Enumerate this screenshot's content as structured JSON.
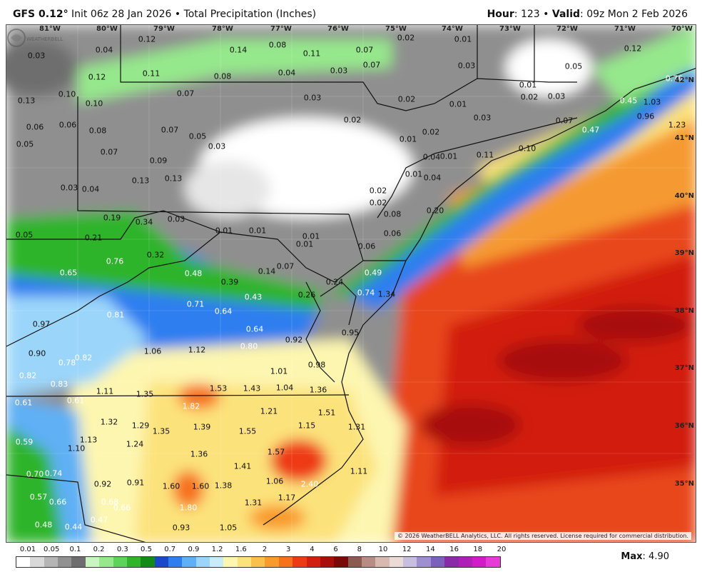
{
  "header": {
    "model": "GFS 0.12",
    "degree": "°",
    "init": "Init 06z 28 Jan 2026",
    "bullet": "•",
    "product": "Total Precipitation (Inches)",
    "hour_label": "Hour",
    "hour_value": "123",
    "valid_label": "Valid",
    "valid_value": "09z Mon 2 Feb 2026"
  },
  "copyright": "© 2026 WeatherBELL Analytics, LLC. All rights reserved. License required for commercial distribution.",
  "logo_text": "WEATHERBELL",
  "max": {
    "label": "Max",
    "value": "4.90"
  },
  "longitude_ticks": [
    "81°W",
    "80°W",
    "79°W",
    "78°W",
    "77°W",
    "76°W",
    "75°W",
    "74°W",
    "73°W",
    "72°W",
    "71°W",
    "70°W"
  ],
  "latitude_ticks": [
    "42°N",
    "41°N",
    "40°N",
    "39°N",
    "38°N",
    "37°N",
    "36°N",
    "35°N"
  ],
  "scale": {
    "labels": [
      "0.01",
      "0.05",
      "0.1",
      "0.2",
      "0.3",
      "0.5",
      "0.7",
      "0.9",
      "1.2",
      "1.6",
      "2",
      "3",
      "4",
      "6",
      "8",
      "10",
      "12",
      "14",
      "16",
      "18",
      "20"
    ],
    "colors": [
      "#ffffff",
      "#d9d9d9",
      "#b5b5b5",
      "#919191",
      "#6e6e6e",
      "#c8f5c0",
      "#96e88c",
      "#5cd45a",
      "#2fb42a",
      "#128a17",
      "#1b48c9",
      "#2f7ef0",
      "#5fb0f5",
      "#9bd6fa",
      "#c9ecfb",
      "#fdf6b0",
      "#fce27a",
      "#fbc04c",
      "#f99a2c",
      "#f6711c",
      "#ee3a14",
      "#d21e10",
      "#a80f0a",
      "#7a0a08",
      "#8c5a4e",
      "#b78c82",
      "#d8b9b0",
      "#eadbd6",
      "#c8bfe0",
      "#9d8fd0",
      "#7a62bc",
      "#8a2aa6",
      "#b01eb8",
      "#d11ac8",
      "#e63ad6"
    ]
  },
  "precip_labels": [
    {
      "v": "0.03"
    },
    {
      "v": "0.04"
    },
    {
      "v": "0.12"
    },
    {
      "v": "0.14"
    },
    {
      "v": "0.08"
    },
    {
      "v": "0.11"
    },
    {
      "v": "0.07"
    },
    {
      "v": "0.02"
    },
    {
      "v": "0.01"
    },
    {
      "v": "0.05"
    },
    {
      "v": "0.12"
    },
    {
      "v": "0.12"
    },
    {
      "v": "0.11"
    },
    {
      "v": "0.08"
    },
    {
      "v": "0.04"
    },
    {
      "v": "0.03"
    },
    {
      "v": "0.07"
    },
    {
      "v": "0.03"
    },
    {
      "v": "0.01"
    },
    {
      "v": "0.76"
    },
    {
      "v": "0.13"
    },
    {
      "v": "0.10"
    },
    {
      "v": "0.10"
    },
    {
      "v": "0.07"
    },
    {
      "v": "0.03"
    },
    {
      "v": "0.02"
    },
    {
      "v": "0.01"
    },
    {
      "v": "0.02"
    },
    {
      "v": "0.03"
    },
    {
      "v": "0.45"
    },
    {
      "v": "1.03"
    },
    {
      "v": "0.06"
    },
    {
      "v": "0.06"
    },
    {
      "v": "0.08"
    },
    {
      "v": "0.07"
    },
    {
      "v": "0.05"
    },
    {
      "v": "0.02"
    },
    {
      "v": "0.03"
    },
    {
      "v": "0.07"
    },
    {
      "v": "0.96"
    },
    {
      "v": "1.23"
    },
    {
      "v": "0.05"
    },
    {
      "v": "0.07"
    },
    {
      "v": "0.03"
    },
    {
      "v": "0.01"
    },
    {
      "v": "0.02"
    },
    {
      "v": "0.04"
    },
    {
      "v": "0.47"
    },
    {
      "v": "0.09"
    },
    {
      "v": "0.01"
    },
    {
      "v": "0.11"
    },
    {
      "v": "0.10"
    },
    {
      "v": "0.03"
    },
    {
      "v": "0.04"
    },
    {
      "v": "0.13"
    },
    {
      "v": "0.13"
    },
    {
      "v": "0.01"
    },
    {
      "v": "0.04"
    },
    {
      "v": "0.02"
    },
    {
      "v": "0.02"
    },
    {
      "v": "0.20"
    },
    {
      "v": "0.19"
    },
    {
      "v": "0.34"
    },
    {
      "v": "0.03"
    },
    {
      "v": "0.08"
    },
    {
      "v": "0.05"
    },
    {
      "v": "0.21"
    },
    {
      "v": "0.01"
    },
    {
      "v": "0.01"
    },
    {
      "v": "0.01"
    },
    {
      "v": "0.06"
    },
    {
      "v": "0.32"
    },
    {
      "v": "0.76"
    },
    {
      "v": "0.01"
    },
    {
      "v": "0.06"
    },
    {
      "v": "0.65"
    },
    {
      "v": "0.48"
    },
    {
      "v": "0.07"
    },
    {
      "v": "0.14"
    },
    {
      "v": "0.49"
    },
    {
      "v": "0.39"
    },
    {
      "v": "0.24"
    },
    {
      "v": "0.74"
    },
    {
      "v": "1.34"
    },
    {
      "v": "0.71"
    },
    {
      "v": "0.43"
    },
    {
      "v": "0.26"
    },
    {
      "v": "0.64"
    },
    {
      "v": "0.81"
    },
    {
      "v": "0.97"
    },
    {
      "v": "0.64"
    },
    {
      "v": "0.95"
    },
    {
      "v": "0.92"
    },
    {
      "v": "0.80"
    },
    {
      "v": "0.90"
    },
    {
      "v": "1.06"
    },
    {
      "v": "1.12"
    },
    {
      "v": "0.78"
    },
    {
      "v": "0.82"
    },
    {
      "v": "0.98"
    },
    {
      "v": "0.82"
    },
    {
      "v": "1.01"
    },
    {
      "v": "0.83"
    },
    {
      "v": "1.53"
    },
    {
      "v": "1.43"
    },
    {
      "v": "1.04"
    },
    {
      "v": "1.36"
    },
    {
      "v": "1.11"
    },
    {
      "v": "1.35"
    },
    {
      "v": "0.61"
    },
    {
      "v": "0.61"
    },
    {
      "v": "1.82"
    },
    {
      "v": "1.21"
    },
    {
      "v": "1.51"
    },
    {
      "v": "1.32"
    },
    {
      "v": "1.29"
    },
    {
      "v": "1.39"
    },
    {
      "v": "1.15"
    },
    {
      "v": "1.31"
    },
    {
      "v": "1.35"
    },
    {
      "v": "1.55"
    },
    {
      "v": "0.59"
    },
    {
      "v": "1.13"
    },
    {
      "v": "1.24"
    },
    {
      "v": "1.10"
    },
    {
      "v": "1.36"
    },
    {
      "v": "1.57"
    },
    {
      "v": "1.41"
    },
    {
      "v": "1.11"
    },
    {
      "v": "0.70"
    },
    {
      "v": "0.74"
    },
    {
      "v": "1.06"
    },
    {
      "v": "0.92"
    },
    {
      "v": "0.91"
    },
    {
      "v": "1.60"
    },
    {
      "v": "1.60"
    },
    {
      "v": "1.38"
    },
    {
      "v": "2.40"
    },
    {
      "v": "0.57"
    },
    {
      "v": "0.66"
    },
    {
      "v": "1.17"
    },
    {
      "v": "0.68"
    },
    {
      "v": "1.80"
    },
    {
      "v": "1.31"
    },
    {
      "v": "0.66"
    },
    {
      "v": "0.47"
    },
    {
      "v": "0.48"
    },
    {
      "v": "0.44"
    },
    {
      "v": "0.93"
    },
    {
      "v": "1.05"
    }
  ]
}
